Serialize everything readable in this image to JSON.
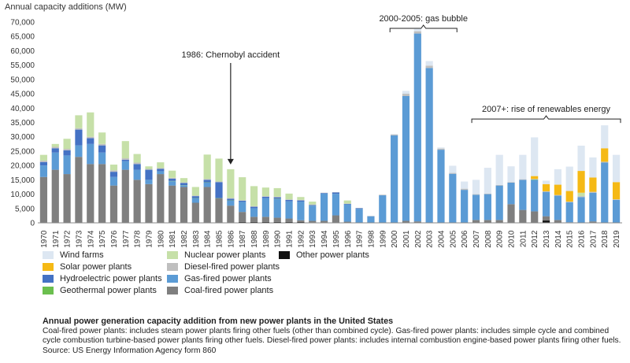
{
  "chart_data": {
    "type": "bar",
    "stacked": true,
    "title": "",
    "ylabel": "Annual capacity additions (MW)",
    "xlabel": "",
    "ylim": [
      0,
      70000
    ],
    "yticks": [
      "0",
      "5,000",
      "10,000",
      "15,000",
      "20,000",
      "25,000",
      "30,000",
      "35,000",
      "40,000",
      "45,000",
      "50,000",
      "55,000",
      "60,000",
      "65,000",
      "70,000"
    ],
    "grid": false,
    "legend_position": "bottom-left",
    "categories": [
      "1970",
      "1971",
      "1972",
      "1973",
      "1974",
      "1975",
      "1976",
      "1977",
      "1978",
      "1979",
      "1980",
      "1981",
      "1982",
      "1983",
      "1984",
      "1985",
      "1986",
      "1987",
      "1988",
      "1989",
      "1990",
      "1991",
      "1992",
      "1993",
      "1994",
      "1995",
      "1996",
      "1997",
      "1998",
      "1999",
      "2000",
      "2001",
      "2002",
      "2003",
      "2004",
      "2005",
      "2006",
      "2007",
      "2008",
      "2009",
      "2010",
      "2011",
      "2012",
      "2013",
      "2014",
      "2015",
      "2016",
      "2017",
      "2018",
      "2019"
    ],
    "series": [
      {
        "name": "Other power plants",
        "color": "#111111",
        "values": [
          0,
          0,
          0,
          0,
          0,
          0,
          0,
          0,
          0,
          0,
          0,
          0,
          0,
          0,
          0,
          0,
          0,
          300,
          300,
          300,
          300,
          300,
          300,
          200,
          0,
          0,
          0,
          0,
          0,
          0,
          0,
          0,
          0,
          0,
          0,
          0,
          0,
          0,
          0,
          0,
          0,
          0,
          0,
          800,
          0,
          0,
          0,
          0,
          0,
          0
        ]
      },
      {
        "name": "Coal-fired power plants",
        "color": "#7f7f7f",
        "values": [
          16000,
          18500,
          17000,
          23000,
          20500,
          20500,
          13000,
          18500,
          15000,
          13500,
          17000,
          13000,
          12500,
          7000,
          12500,
          8500,
          6000,
          3500,
          1800,
          1800,
          1500,
          1200,
          600,
          500,
          700,
          2600,
          400,
          100,
          0,
          100,
          0,
          700,
          500,
          0,
          0,
          100,
          0,
          1000,
          1000,
          1000,
          6500,
          4500,
          4000,
          1500,
          1000,
          200,
          0,
          500,
          0,
          0
        ]
      },
      {
        "name": "Gas-fired power plants",
        "color": "#5b9bd5",
        "values": [
          4000,
          6000,
          6500,
          4000,
          7000,
          4000,
          3000,
          3000,
          3500,
          1500,
          1000,
          1500,
          500,
          1500,
          1500,
          0,
          1700,
          3500,
          3000,
          6500,
          6500,
          6000,
          6500,
          5300,
          9500,
          7500,
          6000,
          4800,
          2300,
          9500,
          30500,
          43500,
          65500,
          54000,
          25500,
          17000,
          11500,
          8800,
          9000,
          12000,
          7500,
          10500,
          11000,
          8500,
          8500,
          7000,
          9000,
          10000,
          21000,
          8000
        ]
      },
      {
        "name": "Geothermal power plants",
        "color": "#6bbf4e",
        "values": [
          0,
          0,
          0,
          0,
          0,
          0,
          0,
          0,
          0,
          0,
          0,
          100,
          100,
          100,
          100,
          100,
          100,
          0,
          0,
          0,
          100,
          0,
          0,
          0,
          0,
          0,
          0,
          0,
          0,
          0,
          0,
          0,
          0,
          0,
          0,
          0,
          0,
          0,
          0,
          0,
          0,
          0,
          100,
          0,
          0,
          0,
          0,
          0,
          0,
          0
        ]
      },
      {
        "name": "Hydroelectric power plants",
        "color": "#4472c4",
        "values": [
          1200,
          1500,
          1800,
          5500,
          2000,
          2500,
          1800,
          500,
          2000,
          3500,
          800,
          800,
          800,
          700,
          900,
          5600,
          600,
          400,
          500,
          500,
          500,
          500,
          400,
          200,
          200,
          500,
          200,
          200,
          0,
          0,
          0,
          0,
          0,
          0,
          0,
          0,
          0,
          0,
          0,
          0,
          0,
          0,
          0,
          0,
          0,
          0,
          0,
          0,
          0,
          0
        ]
      },
      {
        "name": "Diesel-fired power plants",
        "color": "#bfbfbf",
        "values": [
          500,
          500,
          500,
          500,
          500,
          500,
          500,
          500,
          500,
          300,
          300,
          300,
          200,
          200,
          300,
          200,
          300,
          200,
          200,
          200,
          200,
          200,
          200,
          200,
          100,
          100,
          100,
          100,
          100,
          200,
          300,
          800,
          800,
          800,
          400,
          300,
          400,
          200,
          200,
          200,
          200,
          200,
          200,
          200,
          200,
          200,
          300,
          300,
          300,
          200
        ]
      },
      {
        "name": "Nuclear power plants",
        "color": "#c6e0a8",
        "values": [
          2000,
          1000,
          3500,
          4500,
          8500,
          4000,
          2000,
          6000,
          3000,
          900,
          2000,
          2500,
          1500,
          3000,
          8500,
          8000,
          10000,
          8000,
          7000,
          3000,
          3000,
          2000,
          1000,
          1000,
          0,
          0,
          1100,
          0,
          0,
          0,
          0,
          0,
          0,
          0,
          0,
          0,
          0,
          0,
          0,
          0,
          0,
          0,
          0,
          0,
          0,
          0,
          1200,
          0,
          0,
          0
        ]
      },
      {
        "name": "Solar power plants",
        "color": "#f5b915",
        "values": [
          0,
          0,
          0,
          0,
          0,
          0,
          0,
          0,
          0,
          0,
          0,
          0,
          0,
          0,
          0,
          0,
          0,
          0,
          0,
          0,
          0,
          0,
          0,
          0,
          0,
          0,
          0,
          0,
          0,
          0,
          0,
          0,
          0,
          0,
          0,
          0,
          0,
          0,
          0,
          0,
          0,
          0,
          1000,
          2500,
          3600,
          3700,
          7600,
          5000,
          4700,
          6000
        ]
      },
      {
        "name": "Wind farms",
        "color": "#dde7f2",
        "values": [
          0,
          0,
          0,
          0,
          0,
          0,
          0,
          0,
          0,
          0,
          0,
          0,
          0,
          0,
          0,
          0,
          0,
          0,
          0,
          0,
          0,
          0,
          0,
          0,
          0,
          0,
          0,
          0,
          0,
          0,
          200,
          1000,
          800,
          1600,
          400,
          2500,
          2500,
          5000,
          9000,
          10500,
          5500,
          8500,
          13500,
          1200,
          5400,
          8500,
          8800,
          7000,
          8000,
          9500
        ]
      }
    ],
    "annotations": [
      {
        "text": "2000-2005: gas bubble",
        "target": [
          "2000",
          "2005"
        ],
        "style": "bracket"
      },
      {
        "text": "1986: Chernobyl accident",
        "target": [
          "1986"
        ],
        "style": "arrow"
      },
      {
        "text": "2007+: rise of renewables energy",
        "target": [
          "2007",
          "2019"
        ],
        "style": "bracket"
      }
    ]
  },
  "legend": {
    "items": [
      {
        "label": "Wind farms",
        "color": "#dde7f2"
      },
      {
        "label": "Solar power plants",
        "color": "#f5b915"
      },
      {
        "label": "Hydroelectric power plants",
        "color": "#4472c4"
      },
      {
        "label": "Geothermal power plants",
        "color": "#6bbf4e"
      },
      {
        "label": "Nuclear power plants",
        "color": "#c6e0a8"
      },
      {
        "label": "Diesel-fired power plants",
        "color": "#bfbfbf"
      },
      {
        "label": "Gas-fired power plants",
        "color": "#5b9bd5"
      },
      {
        "label": "Coal-fired power plants",
        "color": "#7f7f7f"
      },
      {
        "label": "Other power plants",
        "color": "#111111"
      }
    ]
  },
  "caption": {
    "title": "Annual power generation capacity addition from new power plants in the United States",
    "body": "Coal-fired power plants: includes steam power plants firing other fuels (other than combined cycle). Gas-fired power plants: includes simple cycle and combined cycle combustion turbine-based power plants firing other fuels. Diesel-fired power plants: includes internal combustion engine-based power plants firing other fuels. Source: US Energy Information Agency form 860"
  }
}
